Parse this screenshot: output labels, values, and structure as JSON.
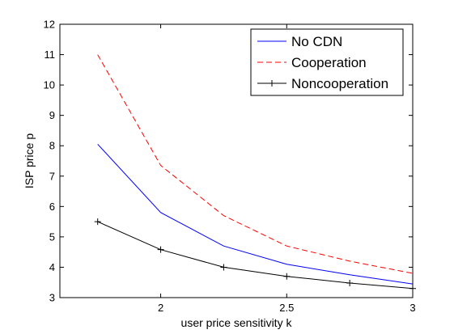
{
  "chart_data": {
    "type": "line",
    "title": "",
    "xlabel": "user price sensitivity k",
    "ylabel": "ISP price p",
    "xlim": [
      1.6,
      3.0
    ],
    "ylim": [
      3,
      12
    ],
    "xticks": [
      2,
      2.5,
      3
    ],
    "xtick_labels": [
      "2",
      "2.5",
      "3"
    ],
    "yticks": [
      3,
      4,
      5,
      6,
      7,
      8,
      9,
      10,
      11,
      12
    ],
    "ytick_labels": [
      "3",
      "4",
      "5",
      "6",
      "7",
      "8",
      "9",
      "10",
      "11",
      "12"
    ],
    "grid": false,
    "legend_position": "top-right",
    "x": [
      1.75,
      2.0,
      2.25,
      2.5,
      2.75,
      3.0
    ],
    "series": [
      {
        "name": "No CDN",
        "color": "#0000ff",
        "style": "solid",
        "marker": "none",
        "values": [
          8.05,
          5.8,
          4.7,
          4.1,
          3.75,
          3.45
        ]
      },
      {
        "name": "Cooperation",
        "color": "#ff0000",
        "style": "dashed",
        "marker": "none",
        "values": [
          11.0,
          7.35,
          5.7,
          4.7,
          4.2,
          3.8
        ]
      },
      {
        "name": "Noncooperation",
        "color": "#000000",
        "style": "solid",
        "marker": "plus",
        "values": [
          5.5,
          4.58,
          4.0,
          3.7,
          3.48,
          3.3
        ]
      }
    ]
  }
}
